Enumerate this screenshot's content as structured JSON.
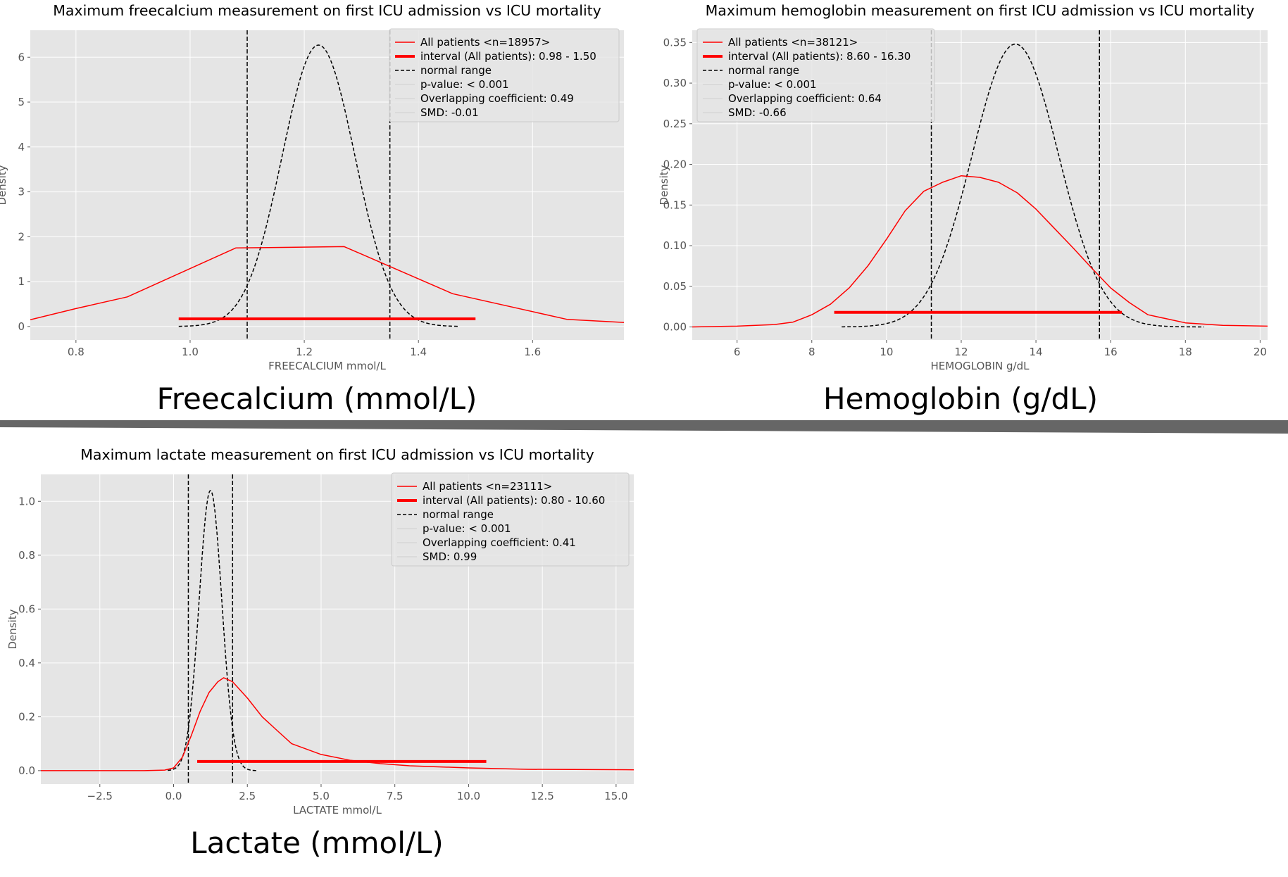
{
  "divider_color": "#666666",
  "chart_data": [
    {
      "type": "line",
      "title": "Maximum freecalcium measurement on first ICU admission vs ICU mortality",
      "caption": "Freecalcium (mmol/L)",
      "xlabel": "FREECALCIUM mmol/L",
      "ylabel": "Density",
      "xlim": [
        0.72,
        1.76
      ],
      "ylim": [
        -0.3,
        6.6
      ],
      "xticks": [
        0.8,
        1.0,
        1.2,
        1.4,
        1.6
      ],
      "xtick_labels": [
        "0.8",
        "1.0",
        "1.2",
        "1.4",
        "1.6"
      ],
      "yticks": [
        0,
        1,
        2,
        3,
        4,
        5,
        6
      ],
      "ytick_labels": [
        "0",
        "1",
        "2",
        "3",
        "4",
        "5",
        "6"
      ],
      "grid": true,
      "legend_position": "top-right",
      "legend": [
        {
          "label": "All patients <n=18957>",
          "style": "red-line"
        },
        {
          "label": "interval (All patients): 0.98 - 1.50",
          "style": "red-thick"
        },
        {
          "label": "normal range",
          "style": "black-dashed"
        },
        {
          "label": "p-value: < 0.001",
          "style": "faint"
        },
        {
          "label": "Overlapping coefficient: 0.49",
          "style": "faint"
        },
        {
          "label": "SMD: -0.01",
          "style": "faint"
        }
      ],
      "kde_all_patients": {
        "x": [
          0.72,
          0.8,
          0.89,
          1.08,
          1.27,
          1.46,
          1.66,
          1.76
        ],
        "y": [
          0.15,
          0.4,
          0.66,
          1.75,
          1.78,
          0.73,
          0.16,
          0.09
        ]
      },
      "normal_curve": {
        "mean": 1.225,
        "sd": 0.0637,
        "peak": 6.27,
        "x_range": [
          0.98,
          1.47
        ]
      },
      "normal_range_lines": [
        1.1,
        1.35
      ],
      "interval": {
        "lo": 0.98,
        "hi": 1.5,
        "y": 0.17
      }
    },
    {
      "type": "line",
      "title": "Maximum hemoglobin measurement on first ICU admission vs ICU mortality",
      "caption": "Hemoglobin (g/dL)",
      "xlabel": "HEMOGLOBIN g/dL",
      "ylabel": "Density",
      "xlim": [
        4.8,
        20.2
      ],
      "ylim": [
        -0.016,
        0.365
      ],
      "xticks": [
        6,
        8,
        10,
        12,
        14,
        16,
        18,
        20
      ],
      "xtick_labels": [
        "6",
        "8",
        "10",
        "12",
        "14",
        "16",
        "18",
        "20"
      ],
      "yticks": [
        0.0,
        0.05,
        0.1,
        0.15,
        0.2,
        0.25,
        0.3,
        0.35
      ],
      "ytick_labels": [
        "0.00",
        "0.05",
        "0.10",
        "0.15",
        "0.20",
        "0.25",
        "0.30",
        "0.35"
      ],
      "grid": true,
      "legend_position": "top-left",
      "legend": [
        {
          "label": "All patients <n=38121>",
          "style": "red-line"
        },
        {
          "label": "interval (All patients): 8.60 - 16.30",
          "style": "red-thick"
        },
        {
          "label": "normal range",
          "style": "black-dashed"
        },
        {
          "label": "p-value: < 0.001",
          "style": "faint"
        },
        {
          "label": "Overlapping coefficient: 0.64",
          "style": "faint"
        },
        {
          "label": "SMD: -0.66",
          "style": "faint"
        }
      ],
      "kde_all_patients": {
        "x": [
          4.8,
          6,
          7,
          7.5,
          8,
          8.5,
          9,
          9.5,
          10,
          10.5,
          11,
          11.5,
          12,
          12.5,
          13,
          13.5,
          14,
          14.5,
          15,
          15.5,
          16,
          16.5,
          17,
          18,
          19,
          20.2
        ],
        "y": [
          0.0,
          0.001,
          0.003,
          0.006,
          0.015,
          0.028,
          0.048,
          0.075,
          0.108,
          0.143,
          0.167,
          0.178,
          0.186,
          0.184,
          0.178,
          0.165,
          0.145,
          0.121,
          0.097,
          0.072,
          0.048,
          0.03,
          0.015,
          0.005,
          0.002,
          0.001
        ]
      },
      "normal_curve": {
        "mean": 13.45,
        "sd": 1.16,
        "peak": 0.348,
        "x_range": [
          8.8,
          18.5
        ]
      },
      "normal_range_lines": [
        11.2,
        15.7
      ],
      "interval": {
        "lo": 8.6,
        "hi": 16.3,
        "y": 0.018
      }
    },
    {
      "type": "line",
      "title": "Maximum lactate measurement on first ICU admission vs ICU mortality",
      "caption": "Lactate (mmol/L)",
      "xlabel": "LACTATE mmol/L",
      "ylabel": "Density",
      "xlim": [
        -4.5,
        15.6
      ],
      "ylim": [
        -0.05,
        1.1
      ],
      "xticks": [
        -2.5,
        0.0,
        2.5,
        5.0,
        7.5,
        10.0,
        12.5,
        15.0
      ],
      "xtick_labels": [
        "−2.5",
        "0.0",
        "2.5",
        "5.0",
        "7.5",
        "10.0",
        "12.5",
        "15.0"
      ],
      "yticks": [
        0.0,
        0.2,
        0.4,
        0.6,
        0.8,
        1.0
      ],
      "ytick_labels": [
        "0.0",
        "0.2",
        "0.4",
        "0.6",
        "0.8",
        "1.0"
      ],
      "grid": true,
      "legend_position": "top-right",
      "legend": [
        {
          "label": "All patients <n=23111>",
          "style": "red-line"
        },
        {
          "label": "interval (All patients): 0.80 - 10.60",
          "style": "red-thick"
        },
        {
          "label": "normal range",
          "style": "black-dashed"
        },
        {
          "label": "p-value: < 0.001",
          "style": "faint"
        },
        {
          "label": "Overlapping coefficient: 0.41",
          "style": "faint"
        },
        {
          "label": "SMD: 0.99",
          "style": "faint"
        }
      ],
      "kde_all_patients": {
        "x": [
          -4.5,
          -1,
          -0.3,
          0,
          0.3,
          0.6,
          0.9,
          1.2,
          1.5,
          1.7,
          2.0,
          2.5,
          3.0,
          3.5,
          4.0,
          5.0,
          6.0,
          7.0,
          8.0,
          10.0,
          12.0,
          15.6
        ],
        "y": [
          0.0,
          0.0,
          0.002,
          0.01,
          0.05,
          0.13,
          0.22,
          0.29,
          0.33,
          0.345,
          0.33,
          0.27,
          0.2,
          0.15,
          0.1,
          0.06,
          0.038,
          0.026,
          0.018,
          0.01,
          0.005,
          0.003
        ]
      },
      "normal_curve": {
        "mean": 1.25,
        "sd": 0.385,
        "peak": 1.04,
        "x_range": [
          -0.2,
          2.8
        ]
      },
      "normal_range_lines": [
        0.5,
        2.0
      ],
      "interval": {
        "lo": 0.8,
        "hi": 10.6,
        "y": 0.034
      }
    }
  ]
}
